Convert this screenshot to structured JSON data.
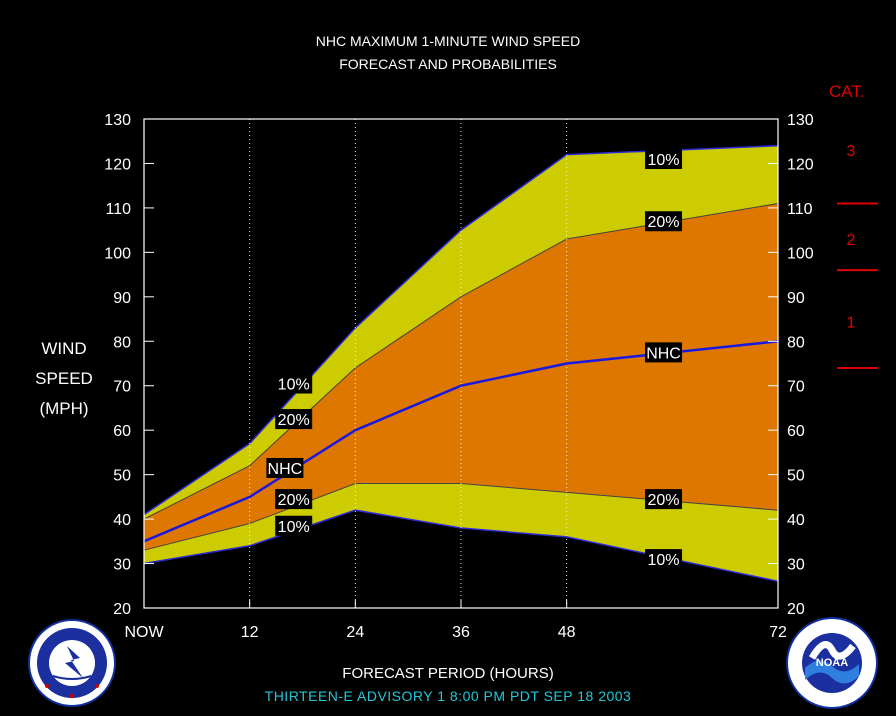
{
  "header": {
    "title_line1": "NHC MAXIMUM 1-MINUTE WIND SPEED",
    "title_line2": "FORECAST AND PROBABILITIES"
  },
  "y_axis_label": [
    "WIND",
    "SPEED",
    "(MPH)"
  ],
  "x_axis_label": "FORECAST PERIOD (HOURS)",
  "advisory": "THIRTEEN-E   ADVISORY  1  8:00  PM  PDT  SEP  18  2003",
  "category": {
    "title": "CAT.",
    "labels": [
      {
        "label": "3",
        "y": 123
      },
      {
        "label": "2",
        "y": 103
      },
      {
        "label": "1",
        "y": 84.5
      }
    ],
    "thresholds": [
      111,
      96,
      74
    ]
  },
  "logos": {
    "left": "national-weather-service-logo",
    "left_ring_text": "NATIONAL WEATHER SERVICE",
    "right": "noaa-logo",
    "right_center_text": "NOAA",
    "right_ring_text": "NATIONAL OCEANIC AND ATMOSPHERIC ADMINISTRATION · U.S. DEPARTMENT OF COMMERCE"
  },
  "colors": {
    "outer_band": "#cccc00",
    "inner_band": "#dd7700",
    "nhc_line": "#1818e0",
    "category_marks": "#e00000",
    "advisory_text": "#22c8d8"
  },
  "chart_data": {
    "type": "area",
    "x": [
      0,
      12,
      24,
      36,
      48,
      72
    ],
    "xticks": [
      0,
      12,
      24,
      36,
      48,
      72
    ],
    "xtick_labels": [
      "NOW",
      "12",
      "24",
      "36",
      "48",
      "72"
    ],
    "xlim": [
      0,
      72
    ],
    "ylim": [
      20,
      130
    ],
    "yticks": [
      20,
      30,
      40,
      50,
      60,
      70,
      80,
      90,
      100,
      110,
      120,
      130
    ],
    "gridlines_x": [
      12,
      24,
      36,
      48
    ],
    "series": [
      {
        "name": "10%",
        "role": "upper_outer",
        "x": [
          0,
          12,
          24,
          36,
          48,
          72
        ],
        "values": [
          41,
          57,
          83,
          105,
          122,
          124
        ]
      },
      {
        "name": "20%",
        "role": "upper_inner",
        "x": [
          0,
          12,
          24,
          36,
          48,
          72
        ],
        "values": [
          40,
          52,
          74,
          90,
          103,
          111
        ]
      },
      {
        "name": "NHC",
        "role": "forecast",
        "x": [
          0,
          12,
          24,
          36,
          48,
          72
        ],
        "values": [
          35,
          45,
          60,
          70,
          75,
          80
        ]
      },
      {
        "name": "20%",
        "role": "lower_inner",
        "x": [
          0,
          12,
          24,
          36,
          48,
          72
        ],
        "values": [
          33,
          39,
          48,
          48,
          46,
          42
        ]
      },
      {
        "name": "10%",
        "role": "lower_outer",
        "x": [
          0,
          12,
          24,
          36,
          48,
          72
        ],
        "values": [
          30,
          34,
          42,
          38,
          36,
          26
        ]
      }
    ],
    "annotations": [
      {
        "text": "10%",
        "x": 17,
        "y": 70.5
      },
      {
        "text": "20%",
        "x": 17,
        "y": 62.5
      },
      {
        "text": "NHC",
        "x": 16,
        "y": 51.5
      },
      {
        "text": "20%",
        "x": 17,
        "y": 44.5
      },
      {
        "text": "10%",
        "x": 17,
        "y": 38.5
      },
      {
        "text": "10%",
        "x": 59,
        "y": 121
      },
      {
        "text": "20%",
        "x": 59,
        "y": 107
      },
      {
        "text": "NHC",
        "x": 59,
        "y": 77.5
      },
      {
        "text": "20%",
        "x": 59,
        "y": 44.5
      },
      {
        "text": "10%",
        "x": 59,
        "y": 31
      }
    ]
  }
}
